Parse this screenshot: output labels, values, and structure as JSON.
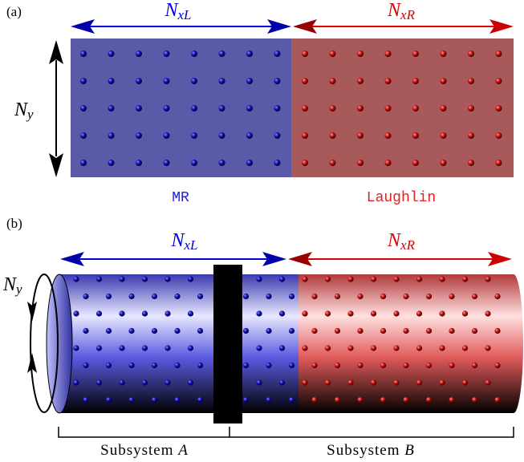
{
  "panel_a": {
    "label": "(a)",
    "left_arrow": {
      "main": "N",
      "sub": "xL"
    },
    "right_arrow": {
      "main": "N",
      "sub": "xR"
    },
    "vertical_arrow": {
      "main": "N",
      "sub": "y"
    },
    "left_region": "MR",
    "right_region": "Laughlin"
  },
  "panel_b": {
    "label": "(b)",
    "left_arrow": {
      "main": "N",
      "sub": "xL"
    },
    "right_arrow": {
      "main": "N",
      "sub": "xR"
    },
    "loop_arrow": {
      "main": "N",
      "sub": "y"
    },
    "subsystem_a": {
      "text": "Subsystem ",
      "var": "A"
    },
    "subsystem_b": {
      "text": "Subsystem ",
      "var": "B"
    }
  }
}
